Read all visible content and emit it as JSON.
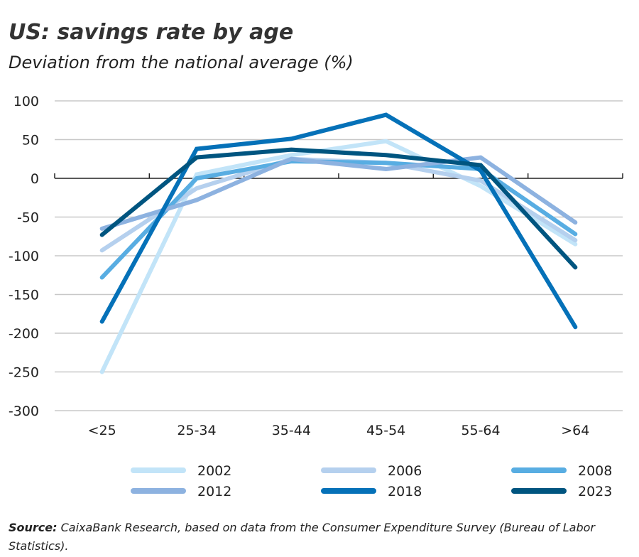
{
  "chart_data": {
    "type": "line",
    "title": "US: savings rate by age",
    "subtitle": "Deviation from the national average (%)",
    "categories": [
      "<25",
      "25-34",
      "35-44",
      "45-54",
      "55-64",
      ">64"
    ],
    "ylim": [
      -300,
      100
    ],
    "yticks": [
      100,
      50,
      0,
      -50,
      -100,
      -150,
      -200,
      -250,
      -300
    ],
    "grid": true,
    "legend_position": "bottom",
    "series": [
      {
        "name": "2002",
        "color": "#c2e4f8",
        "values": [
          -250,
          5,
          30,
          48,
          -10,
          -85
        ]
      },
      {
        "name": "2006",
        "color": "#b5d0ee",
        "values": [
          -93,
          -13,
          25,
          20,
          -3,
          -80
        ]
      },
      {
        "name": "2008",
        "color": "#58ade2",
        "values": [
          -128,
          0,
          22,
          20,
          12,
          -72
        ]
      },
      {
        "name": "2012",
        "color": "#8db2e0",
        "values": [
          -65,
          -28,
          25,
          12,
          27,
          -57
        ]
      },
      {
        "name": "2018",
        "color": "#0571b8",
        "values": [
          -185,
          38,
          51,
          82,
          10,
          -192
        ]
      },
      {
        "name": "2023",
        "color": "#005580",
        "values": [
          -73,
          27,
          37,
          30,
          17,
          -115
        ]
      }
    ]
  },
  "source_label": "Source:",
  "source_text": " CaixaBank Research, based on data from the Consumer Expenditure Survey (Bureau of Labor Statistics)."
}
